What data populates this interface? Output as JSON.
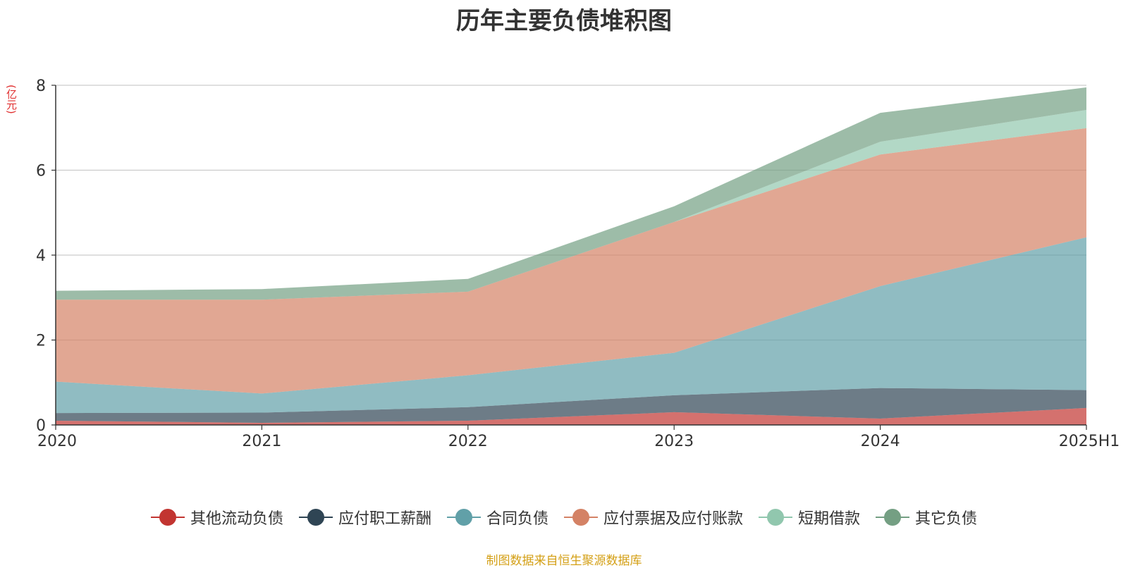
{
  "chart_data": {
    "type": "area",
    "stacked": true,
    "title": "历年主要负债堆积图",
    "ylabel": "(亿元)",
    "categories": [
      "2020",
      "2021",
      "2022",
      "2023",
      "2024",
      "2025H1"
    ],
    "ylim": [
      0,
      8
    ],
    "yticks": [
      0,
      2,
      4,
      6,
      8
    ],
    "grid": true,
    "legend_position": "bottom",
    "series": [
      {
        "name": "其他流动负债",
        "color": "#c23531",
        "values": [
          0.1,
          0.05,
          0.1,
          0.3,
          0.15,
          0.4
        ]
      },
      {
        "name": "应付职工薪酬",
        "color": "#2f4554",
        "values": [
          0.18,
          0.24,
          0.32,
          0.4,
          0.72,
          0.42
        ]
      },
      {
        "name": "合同负债",
        "color": "#61a0a8",
        "values": [
          0.74,
          0.45,
          0.75,
          1.0,
          2.4,
          3.6
        ]
      },
      {
        "name": "应付票据及应付账款",
        "color": "#d48265",
        "values": [
          1.93,
          2.21,
          1.97,
          3.08,
          3.1,
          2.57
        ]
      },
      {
        "name": "短期借款",
        "color": "#91c7ae",
        "values": [
          0.0,
          0.0,
          0.0,
          0.0,
          0.3,
          0.43
        ]
      },
      {
        "name": "其它负债",
        "color": "#749f83",
        "values": [
          0.21,
          0.25,
          0.3,
          0.37,
          0.68,
          0.53
        ]
      }
    ]
  },
  "source_note": "制图数据来自恒生聚源数据库"
}
